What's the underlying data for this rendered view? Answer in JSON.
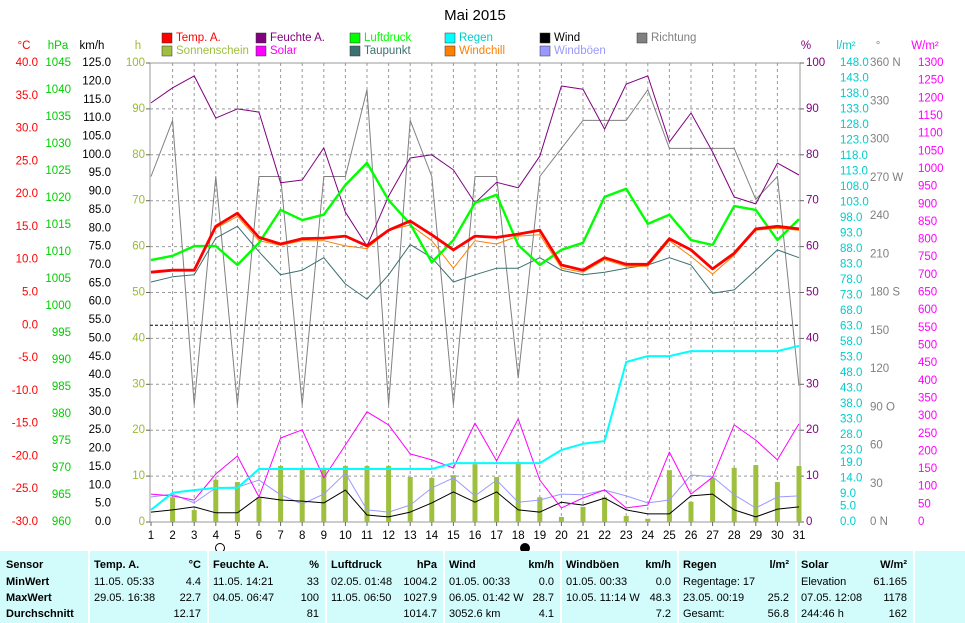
{
  "chart_data": {
    "type": "line",
    "title": "Mai 2015",
    "x": [
      1,
      2,
      3,
      4,
      5,
      6,
      7,
      8,
      9,
      10,
      11,
      12,
      13,
      14,
      15,
      16,
      17,
      18,
      19,
      20,
      21,
      22,
      23,
      24,
      25,
      26,
      27,
      28,
      29,
      30,
      31
    ],
    "xlim": [
      1,
      31
    ],
    "xticks": [
      1,
      2,
      3,
      4,
      5,
      6,
      7,
      8,
      9,
      10,
      11,
      12,
      13,
      14,
      15,
      16,
      17,
      18,
      19,
      20,
      21,
      22,
      23,
      24,
      25,
      26,
      27,
      28,
      29,
      30,
      31
    ],
    "axes": [
      {
        "label": "°C",
        "color": "#ff0000",
        "ylim": [
          -30,
          40
        ],
        "yticks": [
          {
            "value": -30,
            "label": "-30.0"
          },
          {
            "value": -25,
            "label": "-25.0"
          },
          {
            "value": -20,
            "label": "-20.0"
          },
          {
            "value": -15,
            "label": "-15.0"
          },
          {
            "value": -10,
            "label": "-10.0"
          },
          {
            "value": -5,
            "label": "-5.0"
          },
          {
            "value": 0,
            "label": "0.0"
          },
          {
            "value": 5,
            "label": "5.0"
          },
          {
            "value": 10,
            "label": "10.0"
          },
          {
            "value": 15,
            "label": "15.0"
          },
          {
            "value": 20,
            "label": "20.0"
          },
          {
            "value": 25,
            "label": "25.0"
          },
          {
            "value": 30,
            "label": "30.0"
          },
          {
            "value": 35,
            "label": "35.0"
          },
          {
            "value": 40,
            "label": "40.0"
          }
        ]
      },
      {
        "label": "hPa",
        "color": "#00cc00",
        "ylim": [
          960,
          1045
        ],
        "yticks": [
          960,
          965,
          970,
          975,
          980,
          985,
          990,
          995,
          1000,
          1005,
          1010,
          1015,
          1020,
          1025,
          1030,
          1035,
          1040,
          1045
        ]
      },
      {
        "label": "km/h",
        "color": "#000000",
        "ylim": [
          0,
          125
        ],
        "yticks": [
          {
            "value": 0,
            "label": "0.0"
          },
          {
            "value": 5,
            "label": "5.0"
          },
          {
            "value": 10,
            "label": "10.0"
          },
          {
            "value": 15,
            "label": "15.0"
          },
          {
            "value": 20,
            "label": "20.0"
          },
          {
            "value": 25,
            "label": "25.0"
          },
          {
            "value": 30,
            "label": "30.0"
          },
          {
            "value": 35,
            "label": "35.0"
          },
          {
            "value": 40,
            "label": "40.0"
          },
          {
            "value": 45,
            "label": "45.0"
          },
          {
            "value": 50,
            "label": "50.0"
          },
          {
            "value": 55,
            "label": "55.0"
          },
          {
            "value": 60,
            "label": "60.0"
          },
          {
            "value": 65,
            "label": "65.0"
          },
          {
            "value": 70,
            "label": "70.0"
          },
          {
            "value": 75,
            "label": "75.0"
          },
          {
            "value": 80,
            "label": "80.0"
          },
          {
            "value": 85,
            "label": "85.0"
          },
          {
            "value": 90,
            "label": "90.0"
          },
          {
            "value": 95,
            "label": "95.0"
          },
          {
            "value": 100,
            "label": "100.0"
          },
          {
            "value": 105,
            "label": "105.0"
          },
          {
            "value": 110,
            "label": "110.0"
          },
          {
            "value": 115,
            "label": "115.0"
          },
          {
            "value": 120,
            "label": "120.0"
          },
          {
            "value": 125,
            "label": "125.0"
          }
        ]
      },
      {
        "label": "h",
        "color": "#99bb33",
        "ylim": [
          0,
          100
        ],
        "yticks": [
          0,
          10,
          20,
          30,
          40,
          50,
          60,
          70,
          80,
          90,
          100
        ],
        "grid": true
      },
      {
        "label": "%",
        "color": "#800080",
        "ylim": [
          0,
          100
        ],
        "yticks": [
          0,
          10,
          20,
          30,
          40,
          50,
          60,
          70,
          80,
          90,
          100
        ]
      },
      {
        "label": "l/m²",
        "color": "#00cccc",
        "ylim": [
          0,
          148
        ],
        "yticks": [
          {
            "value": 0,
            "label": "0.0"
          },
          {
            "value": 5,
            "label": "5.0"
          },
          {
            "value": 9,
            "label": "9.0"
          },
          {
            "value": 14,
            "label": "14.0"
          },
          {
            "value": 19,
            "label": "19.0"
          },
          {
            "value": 23,
            "label": "23.0"
          },
          {
            "value": 28,
            "label": "28.0"
          },
          {
            "value": 33,
            "label": "33.0"
          },
          {
            "value": 38,
            "label": "38.0"
          },
          {
            "value": 43,
            "label": "43.0"
          },
          {
            "value": 48,
            "label": "48.0"
          },
          {
            "value": 53,
            "label": "53.0"
          },
          {
            "value": 58,
            "label": "58.0"
          },
          {
            "value": 63,
            "label": "63.0"
          },
          {
            "value": 68,
            "label": "68.0"
          },
          {
            "value": 73,
            "label": "73.0"
          },
          {
            "value": 78,
            "label": "78.0"
          },
          {
            "value": 83,
            "label": "83.0"
          },
          {
            "value": 88,
            "label": "88.0"
          },
          {
            "value": 93,
            "label": "93.0"
          },
          {
            "value": 98,
            "label": "98.0"
          },
          {
            "value": 103,
            "label": "103.0"
          },
          {
            "value": 108,
            "label": "108.0"
          },
          {
            "value": 113,
            "label": "113.0"
          },
          {
            "value": 118,
            "label": "118.0"
          },
          {
            "value": 123,
            "label": "123.0"
          },
          {
            "value": 128,
            "label": "128.0"
          },
          {
            "value": 133,
            "label": "133.0"
          },
          {
            "value": 138,
            "label": "138.0"
          },
          {
            "value": 143,
            "label": "143.0"
          },
          {
            "value": 148,
            "label": "148.0"
          }
        ]
      },
      {
        "label": "°",
        "color": "#808080",
        "ylim": [
          0,
          360
        ],
        "yticks": [
          {
            "value": 0,
            "label": "0 N"
          },
          30,
          60,
          {
            "value": 90,
            "label": "90 O"
          },
          120,
          150,
          {
            "value": 180,
            "label": "180 S"
          },
          210,
          240,
          {
            "value": 270,
            "label": "270 W"
          },
          300,
          330,
          {
            "value": 360,
            "label": "360 N"
          }
        ]
      },
      {
        "label": "W/m²",
        "color": "#ff00ff",
        "ylim": [
          0,
          1300
        ],
        "yticks": [
          0,
          50,
          100,
          150,
          200,
          250,
          300,
          350,
          400,
          450,
          500,
          550,
          600,
          650,
          700,
          750,
          800,
          850,
          900,
          950,
          1000,
          1050,
          1100,
          1150,
          1200,
          1250,
          1300
        ]
      }
    ],
    "series": [
      {
        "name": "Temp. A.",
        "color": "#ff0000",
        "axis": "°C",
        "values": [
          8.1,
          8.4,
          8.4,
          15.1,
          17.1,
          13.4,
          12.4,
          13.2,
          13.3,
          13.6,
          12.1,
          14.5,
          15.9,
          13.8,
          11.5,
          13.6,
          13.4,
          13.9,
          14.5,
          9.2,
          8.4,
          10.3,
          9.3,
          9.3,
          13.2,
          11.5,
          8.6,
          11.0,
          14.7,
          15.1,
          14.7
        ]
      },
      {
        "name": "Feuchte A.",
        "color": "#800080",
        "axis": "%",
        "values": [
          91.3,
          94.6,
          97.2,
          88,
          90,
          89.3,
          73.9,
          74.5,
          81.5,
          67.5,
          60.1,
          71,
          79.3,
          80,
          76.7,
          69.5,
          74,
          72.8,
          79.7,
          95,
          94.3,
          85.6,
          95.4,
          97.2,
          82.8,
          89.1,
          80.6,
          70.8,
          69.3,
          78.2,
          75.6
        ]
      },
      {
        "name": "Luftdruck",
        "color": "#00ff00",
        "axis": "hPa",
        "values": [
          1008.5,
          1009.3,
          1011.1,
          1011.1,
          1007.6,
          1011.7,
          1017.8,
          1015.9,
          1016.9,
          1022.4,
          1026.5,
          1019.6,
          1015.2,
          1008.1,
          1012.2,
          1019.1,
          1020.6,
          1011.3,
          1007.6,
          1010.4,
          1011.7,
          1020.2,
          1021.7,
          1015.2,
          1016.9,
          1012.2,
          1011.3,
          1018.5,
          1017.8,
          1012.2,
          1016.1
        ]
      },
      {
        "name": "Regen",
        "color": "#00ffff",
        "axis": "l/m²",
        "values": [
          3.9,
          9.4,
          10.3,
          11.0,
          11.0,
          17.1,
          17.1,
          17.1,
          17.1,
          17.1,
          17.1,
          17.1,
          17.1,
          17.1,
          19.0,
          19.0,
          19.0,
          19.0,
          19.0,
          23.2,
          25.2,
          26.1,
          51.6,
          53.5,
          53.5,
          55.1,
          55.1,
          55.1,
          55.1,
          55.1,
          56.8
        ]
      },
      {
        "name": "Wind",
        "color": "#000000",
        "axis": "km/h",
        "values": [
          2.7,
          3.3,
          4.1,
          2.5,
          2.5,
          6.8,
          6.0,
          5.7,
          5.2,
          8.7,
          1.9,
          1.4,
          2.7,
          5.2,
          8.2,
          5.4,
          8.2,
          3.3,
          2.7,
          5.4,
          4.6,
          6.5,
          3.3,
          2.2,
          2.2,
          7.1,
          7.6,
          3.3,
          1.4,
          3.5,
          4.1
        ]
      },
      {
        "name": "Richtung",
        "color": "#808080",
        "axis": "°",
        "values": [
          271,
          315,
          92,
          271,
          92,
          271,
          271,
          92,
          271,
          271,
          339,
          92,
          315,
          271,
          92,
          271,
          271,
          113,
          271,
          293,
          315,
          315,
          315,
          339,
          293,
          293,
          293,
          293,
          253,
          271,
          107
        ]
      },
      {
        "name": "Sonnenschein",
        "color": "#9fbf3f",
        "axis": "h",
        "type": "bar",
        "values": [
          0,
          5.4,
          2.6,
          9.2,
          8.7,
          5.4,
          12.2,
          11.8,
          11.8,
          12.2,
          12.2,
          12.2,
          9.8,
          9.6,
          10.2,
          12.6,
          9.8,
          13.1,
          5.4,
          1.1,
          3.3,
          5.4,
          1.3,
          0.7,
          11.3,
          4.4,
          9.6,
          11.8,
          12.4,
          8.7,
          12.2
        ]
      },
      {
        "name": "Solar",
        "color": "#ff00ff",
        "axis": "W/m²",
        "values": [
          79,
          74,
          62,
          136,
          187,
          71,
          238,
          261,
          125,
          218,
          312,
          275,
          193,
          176,
          153,
          280,
          173,
          292,
          119,
          40,
          68,
          91,
          40,
          48,
          198,
          79,
          127,
          275,
          232,
          176,
          278
        ]
      },
      {
        "name": "Taupunkt",
        "color": "#3d7070",
        "axis": "°C",
        "values": [
          6.6,
          7.4,
          7.7,
          13.3,
          15.1,
          11.2,
          7.7,
          8.4,
          10.3,
          6.3,
          4.0,
          7.7,
          12.3,
          10.3,
          6.6,
          7.7,
          8.7,
          8.7,
          10.3,
          8.4,
          7.7,
          8.1,
          8.7,
          9.2,
          10.3,
          9.2,
          4.9,
          5.4,
          8.4,
          11.5,
          10.3
        ]
      },
      {
        "name": "Windchill",
        "color": "#ff8000",
        "axis": "°C",
        "values": [
          8.1,
          8.4,
          8.4,
          14.8,
          16.6,
          12.9,
          12.2,
          12.9,
          12.9,
          12.1,
          11.7,
          14.5,
          15.3,
          12.9,
          8.7,
          12.9,
          12.4,
          13.6,
          13.8,
          8.7,
          8.1,
          10.0,
          9.0,
          9.0,
          12.9,
          10.5,
          7.8,
          10.7,
          14.5,
          14.8,
          14.5
        ]
      },
      {
        "name": "Windböen",
        "color": "#9999ff",
        "axis": "km/h",
        "values": [
          6.8,
          7.6,
          5.2,
          9.3,
          9.5,
          11.4,
          7.4,
          4.9,
          7.6,
          13.3,
          3.3,
          2.7,
          4.6,
          9.3,
          12.0,
          7.1,
          11.4,
          5.4,
          6.0,
          7.6,
          7.4,
          8.7,
          7.1,
          5.2,
          6.0,
          12.8,
          12.3,
          7.4,
          3.8,
          6.8,
          7.1
        ]
      }
    ]
  },
  "table": {
    "row_labels": [
      "Sensor",
      "MinWert",
      "MaxWert",
      "Durchschnitt"
    ],
    "columns": [
      {
        "name": "Temp. A.",
        "unit": "°C",
        "cells": [
          [
            "11.05. 05:33",
            "4.4"
          ],
          [
            "29.05. 16:38",
            "22.7"
          ],
          [
            null,
            "12.17"
          ]
        ]
      },
      {
        "name": "Feuchte A.",
        "unit": "%",
        "cells": [
          [
            "11.05. 14:21",
            "33"
          ],
          [
            "04.05. 06:47",
            "100"
          ],
          [
            null,
            "81"
          ]
        ]
      },
      {
        "name": "Luftdruck",
        "unit": "hPa",
        "cells": [
          [
            "02.05. 01:48",
            "1004.2"
          ],
          [
            "11.05. 06:50",
            "1027.9"
          ],
          [
            null,
            "1014.7"
          ]
        ]
      },
      {
        "name": "Wind",
        "unit": "km/h",
        "cells": [
          [
            "01.05. 00:33",
            "0.0"
          ],
          [
            "06.05. 01:42 W",
            "28.7"
          ],
          [
            "3052.6 km",
            "4.1"
          ]
        ]
      },
      {
        "name": "Windböen",
        "unit": "km/h",
        "cells": [
          [
            "01.05. 00:33",
            "0.0"
          ],
          [
            "10.05. 11:14 W",
            "48.3"
          ],
          [
            null,
            "7.2"
          ]
        ]
      },
      {
        "name": "Regen",
        "unit": "l/m²",
        "cells": [
          [
            "Regentage: 17",
            null
          ],
          [
            "23.05. 00:19",
            "25.2"
          ],
          [
            "Gesamt:",
            "56.8"
          ]
        ]
      },
      {
        "name": "Solar",
        "unit": "W/m²",
        "cells": [
          [
            "Elevation",
            "61.165"
          ],
          [
            "07.05. 12:08",
            "1178"
          ],
          [
            "244:46 h",
            "162"
          ]
        ]
      }
    ]
  }
}
